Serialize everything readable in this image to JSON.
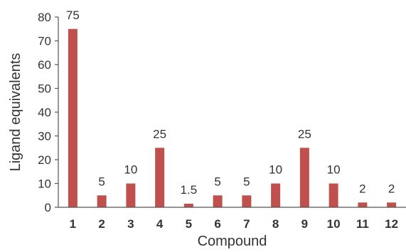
{
  "chart_data": {
    "type": "bar",
    "title": "",
    "xlabel": "Compound",
    "ylabel": "Ligand equivalents",
    "categories": [
      "1",
      "2",
      "3",
      "4",
      "5",
      "6",
      "7",
      "8",
      "9",
      "10",
      "11",
      "12"
    ],
    "values": [
      75,
      5,
      10,
      25,
      1.5,
      5,
      5,
      10,
      25,
      10,
      2,
      2
    ],
    "data_labels": [
      "75",
      "5",
      "10",
      "25",
      "1.5",
      "5",
      "5",
      "10",
      "25",
      "10",
      "2",
      "2"
    ],
    "ylim": [
      0,
      80
    ],
    "yticks": [
      "0",
      "10",
      "20",
      "30",
      "40",
      "50",
      "60",
      "70",
      "80"
    ],
    "grid": false,
    "bar_color": "#c0504d"
  }
}
